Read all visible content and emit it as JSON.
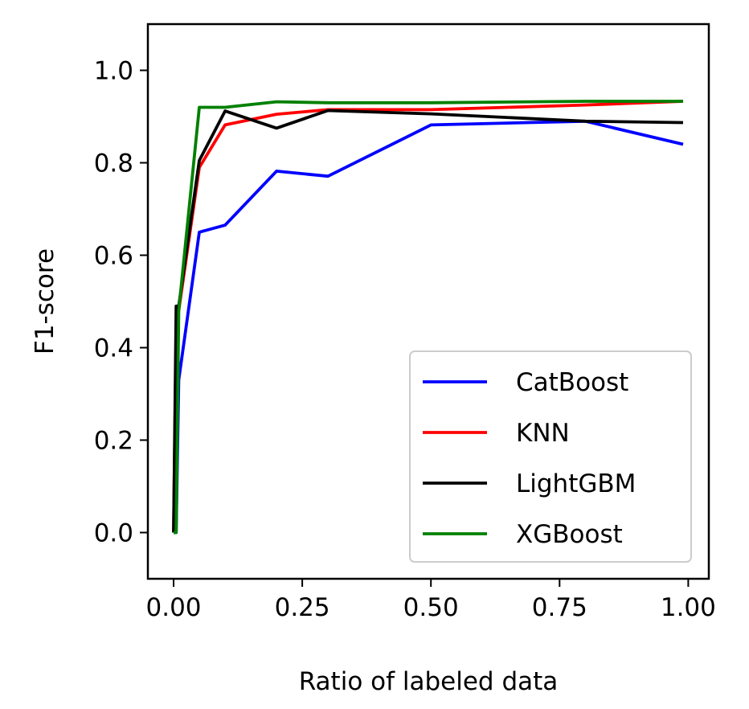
{
  "chart_data": {
    "type": "line",
    "xlabel": "Ratio of labeled data",
    "ylabel": "F1-score",
    "xlim": [
      -0.05,
      1.04
    ],
    "ylim": [
      -0.1,
      1.1
    ],
    "xticks": [
      0.0,
      0.25,
      0.5,
      0.75,
      1.0
    ],
    "xtick_labels": [
      "0.00",
      "0.25",
      "0.50",
      "0.75",
      "1.00"
    ],
    "yticks": [
      0.0,
      0.2,
      0.4,
      0.6,
      0.8,
      1.0
    ],
    "ytick_labels": [
      "0.0",
      "0.2",
      "0.4",
      "0.6",
      "0.8",
      "1.0"
    ],
    "grid": false,
    "legend_position": "lower-right",
    "series": [
      {
        "name": "CatBoost",
        "color": "#0000ff",
        "x": [
          0.0,
          0.005,
          0.01,
          0.05,
          0.1,
          0.2,
          0.3,
          0.5,
          0.8,
          0.99
        ],
        "y": [
          0.0,
          0.0,
          0.33,
          0.65,
          0.665,
          0.782,
          0.771,
          0.882,
          0.89,
          0.84
        ]
      },
      {
        "name": "KNN",
        "color": "#ff0000",
        "x": [
          0.0,
          0.005,
          0.01,
          0.05,
          0.1,
          0.2,
          0.3,
          0.5,
          0.8,
          0.99
        ],
        "y": [
          0.0,
          0.44,
          0.48,
          0.79,
          0.882,
          0.905,
          0.915,
          0.915,
          0.925,
          0.933
        ]
      },
      {
        "name": "LightGBM",
        "color": "#000000",
        "x": [
          0.0,
          0.005,
          0.01,
          0.05,
          0.1,
          0.2,
          0.3,
          0.5,
          0.8,
          0.99
        ],
        "y": [
          0.0,
          0.49,
          0.49,
          0.805,
          0.912,
          0.875,
          0.913,
          0.906,
          0.89,
          0.887
        ]
      },
      {
        "name": "XGBoost",
        "color": "#008000",
        "x": [
          0.0,
          0.005,
          0.01,
          0.05,
          0.1,
          0.2,
          0.3,
          0.5,
          0.8,
          0.99
        ],
        "y": [
          0.0,
          0.0,
          0.48,
          0.92,
          0.92,
          0.932,
          0.93,
          0.93,
          0.933,
          0.933
        ]
      }
    ]
  }
}
